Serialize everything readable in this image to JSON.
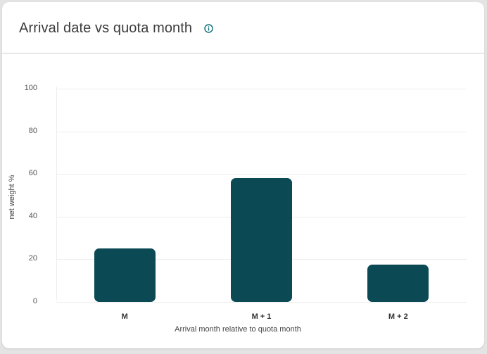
{
  "header": {
    "title": "Arrival date vs quota month",
    "info_icon": "info-circle-icon"
  },
  "colors": {
    "bar": "#0b4a55",
    "info_icon": "#0b6e78",
    "gridline": "#ededed"
  },
  "chart_data": {
    "type": "bar",
    "title": "Arrival date vs quota month",
    "categories": [
      "M",
      "M + 1",
      "M + 2"
    ],
    "values": [
      25,
      58,
      17.5
    ],
    "xlabel": "Arrival month relative to quota month",
    "ylabel": "net weight %",
    "ylim": [
      0,
      100
    ],
    "yticks": [
      "0",
      "20",
      "40",
      "60",
      "80",
      "100"
    ],
    "grid": true,
    "legend": null
  }
}
